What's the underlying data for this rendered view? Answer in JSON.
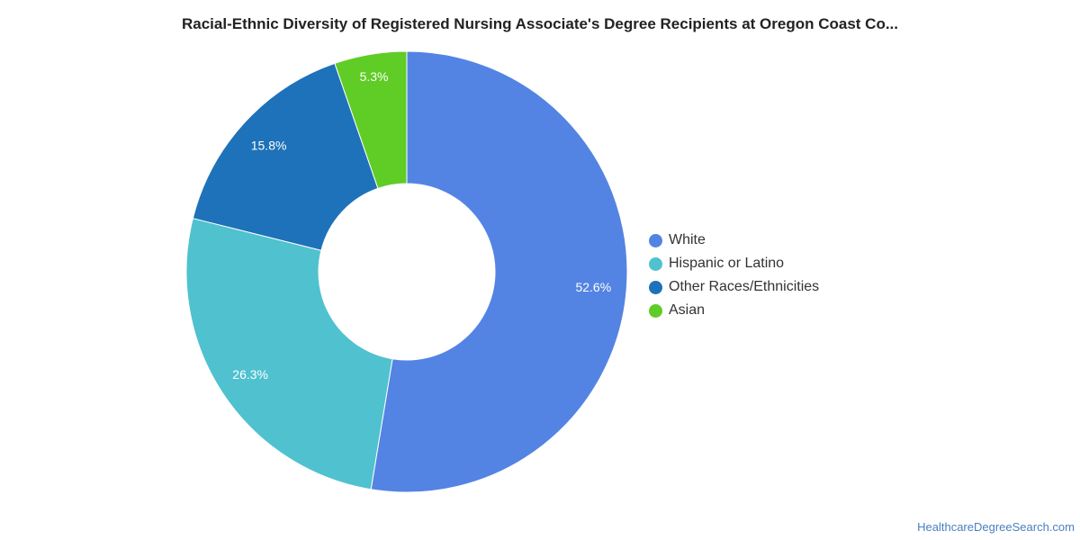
{
  "chart_data": {
    "type": "pie",
    "title": "Racial-Ethnic Diversity of Registered Nursing Associate's Degree Recipients at Oregon Coast Co...",
    "donut": true,
    "legend_position": "right",
    "slices": [
      {
        "name": "White",
        "value": 52.6,
        "label": "52.6%",
        "color": "#5384e3"
      },
      {
        "name": "Hispanic or Latino",
        "value": 26.3,
        "label": "26.3%",
        "color": "#50c1cf"
      },
      {
        "name": "Other Races/Ethnicities",
        "value": 15.8,
        "label": "15.8%",
        "color": "#1e72b9"
      },
      {
        "name": "Asian",
        "value": 5.3,
        "label": "5.3%",
        "color": "#60cc26"
      }
    ]
  },
  "footer": {
    "source": "HealthcareDegreeSearch.com"
  }
}
